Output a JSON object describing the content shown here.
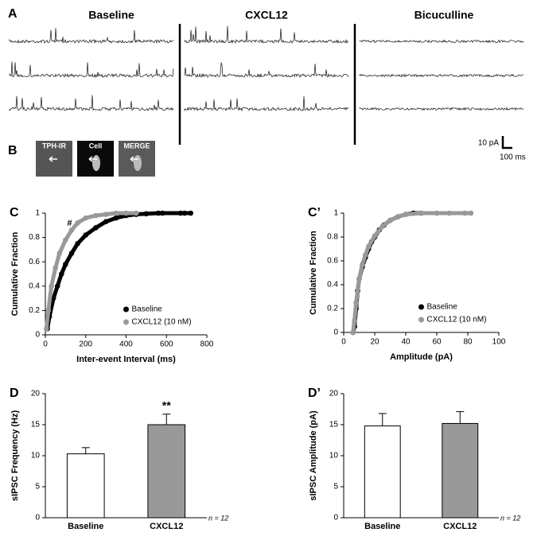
{
  "panel_a": {
    "label": "A",
    "conditions": [
      "Baseline",
      "CXCL12",
      "Bicuculline"
    ],
    "scale_bar": {
      "amplitude": "10 pA",
      "time": "100 ms"
    }
  },
  "panel_b": {
    "label": "B",
    "images": [
      "TPH-IR",
      "Cell",
      "MERGE"
    ]
  },
  "chart_data": [
    {
      "type": "scatter",
      "label": "C",
      "x_label": "Inter-event Interval (ms)",
      "y_label": "Cumulative Fraction",
      "annotation": "#",
      "xlim": [
        0,
        800
      ],
      "xticks": [
        0,
        200,
        400,
        600,
        800
      ],
      "ylim": [
        0,
        1
      ],
      "yticks": [
        0,
        0.2,
        0.4,
        0.6,
        0.8,
        1
      ],
      "legend": "lower right",
      "series": [
        {
          "name": "Baseline",
          "color": "#000000",
          "x": [
            10,
            20,
            40,
            60,
            80,
            100,
            130,
            160,
            200,
            250,
            300,
            350,
            400,
            450,
            500,
            560,
            580,
            670,
            690,
            720
          ],
          "y": [
            0.05,
            0.15,
            0.3,
            0.4,
            0.5,
            0.58,
            0.67,
            0.75,
            0.82,
            0.88,
            0.93,
            0.96,
            0.98,
            0.99,
            0.995,
            1,
            1,
            1,
            1,
            1
          ]
        },
        {
          "name": "CXCL12 (10 nM)",
          "color": "#999999",
          "x": [
            5,
            15,
            30,
            50,
            70,
            100,
            130,
            160,
            200,
            250,
            300,
            350,
            400,
            450
          ],
          "y": [
            0.05,
            0.2,
            0.4,
            0.55,
            0.67,
            0.78,
            0.86,
            0.92,
            0.96,
            0.98,
            0.99,
            1,
            1,
            1
          ]
        }
      ]
    },
    {
      "type": "scatter",
      "label": "C’",
      "x_label": "Amplitude (pA)",
      "y_label": "Cumulative Fraction",
      "xlim": [
        0,
        100
      ],
      "xticks": [
        0,
        20,
        40,
        60,
        80,
        100
      ],
      "ylim": [
        0,
        1
      ],
      "yticks": [
        0,
        0.2,
        0.4,
        0.6,
        0.8,
        1
      ],
      "legend": "lower right",
      "series": [
        {
          "name": "Baseline",
          "color": "#000000",
          "x": [
            6,
            7,
            8,
            9,
            10,
            12,
            14,
            16,
            18,
            20,
            23,
            26,
            30,
            35,
            40,
            45,
            50
          ],
          "y": [
            0,
            0.05,
            0.2,
            0.35,
            0.45,
            0.55,
            0.63,
            0.7,
            0.76,
            0.8,
            0.86,
            0.9,
            0.94,
            0.97,
            0.99,
            1,
            1
          ]
        },
        {
          "name": "CXCL12 (10 nM)",
          "color": "#999999",
          "x": [
            6,
            7,
            8,
            10,
            12,
            14,
            16,
            20,
            25,
            30,
            35,
            40,
            50,
            60,
            68,
            78,
            82
          ],
          "y": [
            0,
            0.1,
            0.25,
            0.45,
            0.57,
            0.65,
            0.72,
            0.81,
            0.89,
            0.94,
            0.97,
            0.99,
            1,
            1,
            1,
            1,
            1
          ]
        }
      ]
    },
    {
      "type": "bar",
      "label": "D",
      "y_label": "sIPSC Frequency (Hz)",
      "annotation": "**",
      "note": "n = 12",
      "categories": [
        "Baseline",
        "CXCL12"
      ],
      "values": [
        10.3,
        15.0
      ],
      "errors": [
        1.0,
        1.7
      ],
      "colors": [
        "#ffffff",
        "#999999"
      ],
      "ylim": [
        0,
        20
      ],
      "yticks": [
        0,
        5,
        10,
        15,
        20
      ]
    },
    {
      "type": "bar",
      "label": "D’",
      "y_label": "sIPSC Amplitude (pA)",
      "note": "n = 12",
      "categories": [
        "Baseline",
        "CXCL12"
      ],
      "values": [
        14.8,
        15.2
      ],
      "errors": [
        2.0,
        1.9
      ],
      "colors": [
        "#ffffff",
        "#999999"
      ],
      "ylim": [
        0,
        20
      ],
      "yticks": [
        0,
        5,
        10,
        15,
        20
      ]
    }
  ]
}
